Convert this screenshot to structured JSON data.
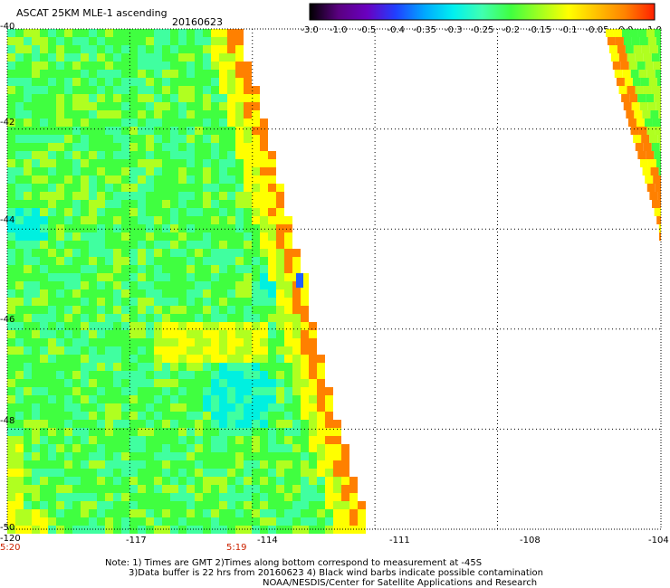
{
  "header": {
    "title": "ASCAT 25KM MLE-1 ascending",
    "date": "20160623"
  },
  "colorbar": {
    "labels": [
      "-3.0",
      "-1.0",
      "-0.5",
      "-0.4",
      "-0.35",
      "-0.3",
      "-0.25",
      "-0.2",
      "-0.15",
      "-0.1",
      "-0.05",
      "0.0",
      "1.0"
    ],
    "colors": [
      "#000000",
      "#5a0080",
      "#6a00c0",
      "#2040ff",
      "#00a8ff",
      "#00f0f0",
      "#40ffb0",
      "#40ff40",
      "#a0ff20",
      "#ffff00",
      "#ffc000",
      "#ff8000",
      "#ff2000"
    ]
  },
  "map": {
    "lat_labels": [
      "-40",
      "-42",
      "-44",
      "-46",
      "-48",
      "-50"
    ],
    "lon_labels": [
      "-120",
      "-117",
      "-114",
      "-111",
      "-108",
      "-104"
    ],
    "time_labels": [
      "5:20",
      "5:19"
    ],
    "lat_range": [
      -50,
      -40
    ],
    "lon_range": [
      -120,
      -104
    ],
    "field_colors": {
      "cyan": "#00f0e0",
      "aqua_green": "#40ffa0",
      "green": "#40ff40",
      "yellow_green": "#b0ff20",
      "yellow": "#ffff00",
      "orange": "#ff8000",
      "blue": "#2060ff"
    },
    "outline_color": "#000000"
  },
  "notes": {
    "line1": "Note: 1) Times are GMT 2)Times along bottom correspond to measurement at -45S",
    "line2": "3)Data buffer is 22 hrs from 20160623 4) Black wind barbs indicate possible contamination",
    "line3": "NOAA/NESDIS/Center for Satellite Applications and Research"
  }
}
